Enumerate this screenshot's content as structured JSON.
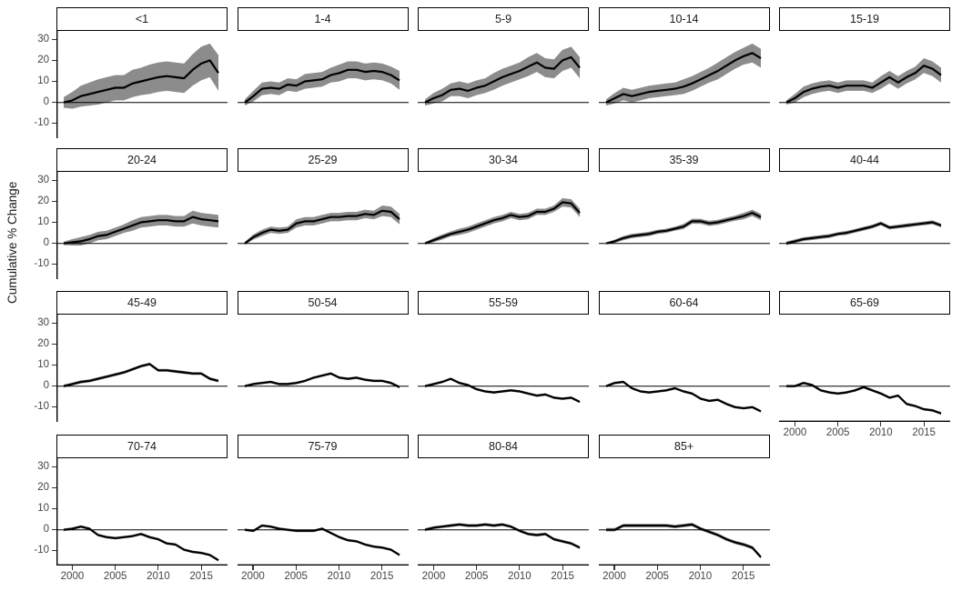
{
  "colors": {
    "line": "#000000",
    "band": "#8c8c8c",
    "axis_line": "#000000",
    "zero_line": "#000000",
    "tick_text": "#454545",
    "strip_border": "#000000",
    "strip_fill": "#ffffff",
    "background": "#ffffff"
  },
  "chart_data": {
    "type": "line",
    "title": "",
    "xlabel": "",
    "ylabel": "Cumulative % Change",
    "x": [
      1999,
      2000,
      2001,
      2002,
      2003,
      2004,
      2005,
      2006,
      2007,
      2008,
      2009,
      2010,
      2011,
      2012,
      2013,
      2014,
      2015,
      2016,
      2017
    ],
    "xlim": [
      1999,
      2017
    ],
    "ylim": [
      -17,
      34
    ],
    "y_ticks": [
      30,
      20,
      10,
      0,
      -10
    ],
    "x_ticks": [
      2000,
      2005,
      2010,
      2015
    ],
    "grid": false,
    "legend": "none",
    "layout": {
      "columns": 5,
      "facet_count": 19,
      "left_axis_column": 0,
      "bottom_axis_facets": [
        "65-69",
        "70-74",
        "75-79",
        "80-84",
        "85+"
      ],
      "ribbon": "shaded uncertainty band around each line",
      "zero_reference_line": true
    },
    "facets": [
      {
        "label": "<1",
        "values": [
          0,
          1,
          3,
          4,
          5,
          6,
          7,
          7,
          9,
          10,
          11,
          12,
          12.5,
          12,
          11.5,
          15.5,
          18.5,
          20,
          14
        ],
        "band": [
          2.5,
          4,
          5,
          5.5,
          6,
          6,
          6,
          6,
          6.5,
          6.5,
          7,
          7,
          7,
          7,
          7,
          7.5,
          8,
          8,
          8.5
        ]
      },
      {
        "label": "1-4",
        "values": [
          0,
          3,
          6.5,
          7,
          6.5,
          8.5,
          8,
          10,
          10.5,
          11,
          13,
          14,
          15.5,
          15.5,
          14.5,
          15,
          14.5,
          13,
          10.5
        ],
        "band": [
          1.5,
          2.5,
          3,
          3,
          3,
          3,
          3,
          3.5,
          3.5,
          3.5,
          3.5,
          4,
          4,
          4,
          4,
          4,
          4,
          4,
          4.5
        ]
      },
      {
        "label": "5-9",
        "values": [
          0,
          2,
          3.5,
          6,
          6.5,
          5.5,
          7,
          8,
          10,
          12,
          13.5,
          15,
          17,
          19,
          16.5,
          16,
          20,
          21.5,
          16.5
        ],
        "band": [
          1.5,
          2.5,
          3,
          3,
          3.5,
          3.5,
          3.5,
          3.5,
          4,
          4,
          4,
          4,
          4.5,
          4.5,
          4.5,
          4.5,
          5,
          5,
          5
        ]
      },
      {
        "label": "10-14",
        "values": [
          0,
          2,
          4,
          3,
          4,
          5,
          5.5,
          6,
          6.5,
          7.5,
          9,
          11,
          13,
          15,
          17.5,
          20,
          22,
          23.5,
          21
        ],
        "band": [
          1.5,
          2.5,
          3,
          3,
          3,
          3,
          3,
          3,
          3,
          3.5,
          3.5,
          3.5,
          3.5,
          4,
          4,
          4,
          4,
          4.5,
          4.5
        ]
      },
      {
        "label": "15-19",
        "values": [
          0,
          2,
          5,
          6.5,
          7.5,
          8,
          7,
          8,
          8,
          8,
          7,
          9.5,
          12,
          9.5,
          12,
          14,
          17.5,
          16,
          13
        ],
        "band": [
          1,
          2,
          2.5,
          2.5,
          2.5,
          2.5,
          2.5,
          2.5,
          2.5,
          2.5,
          2.5,
          3,
          3,
          3,
          3,
          3,
          3.5,
          3.5,
          3.5
        ]
      },
      {
        "label": "20-24",
        "values": [
          0,
          0.5,
          1,
          2,
          3.5,
          4,
          5.5,
          7,
          8.5,
          10,
          10.5,
          11,
          11,
          10.5,
          10.5,
          12.5,
          11.5,
          11,
          10.5
        ],
        "band": [
          0.8,
          1.5,
          2,
          2,
          2,
          2,
          2,
          2,
          2.5,
          2.5,
          2.5,
          2.5,
          2.5,
          2.5,
          2.5,
          3,
          3,
          3,
          3
        ]
      },
      {
        "label": "25-29",
        "values": [
          0,
          3,
          5,
          6.5,
          6,
          6.5,
          9.5,
          10.5,
          10.5,
          11.5,
          12.5,
          12.5,
          13,
          13,
          14,
          13.5,
          15.5,
          15,
          11.5
        ],
        "band": [
          0.7,
          1.2,
          1.5,
          1.5,
          1.5,
          1.5,
          2,
          2,
          2,
          2,
          2,
          2,
          2,
          2,
          2,
          2,
          2.5,
          2.5,
          2.5
        ]
      },
      {
        "label": "30-34",
        "values": [
          0,
          1.5,
          3,
          4.5,
          5.5,
          6.5,
          8,
          9.5,
          11,
          12,
          13.5,
          12.5,
          13,
          15,
          15,
          16.5,
          19.5,
          19,
          14.5
        ],
        "band": [
          0.5,
          1,
          1.2,
          1.2,
          1.5,
          1.5,
          1.5,
          1.5,
          1.5,
          1.5,
          1.5,
          1.5,
          1.5,
          1.5,
          1.5,
          1.5,
          2,
          2,
          2
        ]
      },
      {
        "label": "35-39",
        "values": [
          0,
          1,
          2.5,
          3.5,
          4,
          4.5,
          5.5,
          6,
          7,
          8,
          10.5,
          10.5,
          9.5,
          10,
          11,
          12,
          13,
          14.5,
          12.5
        ],
        "band": [
          0.4,
          0.8,
          1,
          1,
          1,
          1,
          1,
          1,
          1,
          1.2,
          1.2,
          1.2,
          1.2,
          1.2,
          1.2,
          1.2,
          1.5,
          1.5,
          1.5
        ]
      },
      {
        "label": "40-44",
        "values": [
          0,
          1,
          2,
          2.5,
          3,
          3.5,
          4.5,
          5,
          6,
          7,
          8,
          9.5,
          7.5,
          8,
          8.5,
          9,
          9.5,
          10,
          8.5
        ],
        "band": 0.9
      },
      {
        "label": "45-49",
        "values": [
          0,
          1,
          2,
          2.5,
          3.5,
          4.5,
          5.5,
          6.5,
          8,
          9.5,
          10.5,
          7.5,
          7.5,
          7,
          6.5,
          6,
          6,
          3.5,
          2.5
        ],
        "band": 0.7
      },
      {
        "label": "50-54",
        "values": [
          0,
          1,
          1.5,
          2,
          1,
          1,
          1.5,
          2.5,
          4,
          5,
          6,
          4,
          3.5,
          4,
          3,
          2.5,
          2.5,
          1.5,
          -0.5
        ],
        "band": 0.6
      },
      {
        "label": "55-59",
        "values": [
          0,
          1,
          2,
          3.5,
          1.5,
          0.5,
          -1.5,
          -2.5,
          -3,
          -2.5,
          -2,
          -2.5,
          -3.5,
          -4.5,
          -4,
          -5.5,
          -6,
          -5.5,
          -7.5
        ],
        "band": 0.6
      },
      {
        "label": "60-64",
        "values": [
          0,
          1.5,
          2,
          -1,
          -2.5,
          -3,
          -2.5,
          -2,
          -1,
          -2.5,
          -3.5,
          -6,
          -7,
          -6.5,
          -8.5,
          -10,
          -10.5,
          -10,
          -12
        ],
        "band": 0.6
      },
      {
        "label": "65-69",
        "values": [
          0,
          0,
          1.5,
          0.5,
          -2,
          -3,
          -3.5,
          -3,
          -2,
          -0.5,
          -2,
          -3.5,
          -5.5,
          -4.5,
          -8.5,
          -9.5,
          -11,
          -11.5,
          -13
        ],
        "band": 0.6
      },
      {
        "label": "70-74",
        "values": [
          0,
          0.5,
          1.5,
          0.5,
          -2.5,
          -3.5,
          -4,
          -3.5,
          -3,
          -2,
          -3.5,
          -4.5,
          -6.5,
          -7,
          -9.5,
          -10.5,
          -11,
          -12,
          -14.5
        ],
        "band": 0.6
      },
      {
        "label": "75-79",
        "values": [
          0,
          -0.5,
          2,
          1.5,
          0.5,
          0,
          -0.5,
          -0.5,
          -0.5,
          0.5,
          -1.5,
          -3.5,
          -5,
          -5.5,
          -7,
          -8,
          -8.5,
          -9.5,
          -12
        ],
        "band": 0.6
      },
      {
        "label": "80-84",
        "values": [
          0,
          1,
          1.5,
          2,
          2.5,
          2,
          2,
          2.5,
          2,
          2.5,
          1.5,
          -0.5,
          -2,
          -2.5,
          -2,
          -4.5,
          -5.5,
          -6.5,
          -8.5
        ],
        "band": 0.7
      },
      {
        "label": "85+",
        "values": [
          0,
          0,
          2,
          2,
          2,
          2,
          2,
          2,
          1.5,
          2,
          2.5,
          0.5,
          -1,
          -2.5,
          -4.5,
          -6,
          -7,
          -8.5,
          -13
        ],
        "band": 0.8
      }
    ]
  }
}
